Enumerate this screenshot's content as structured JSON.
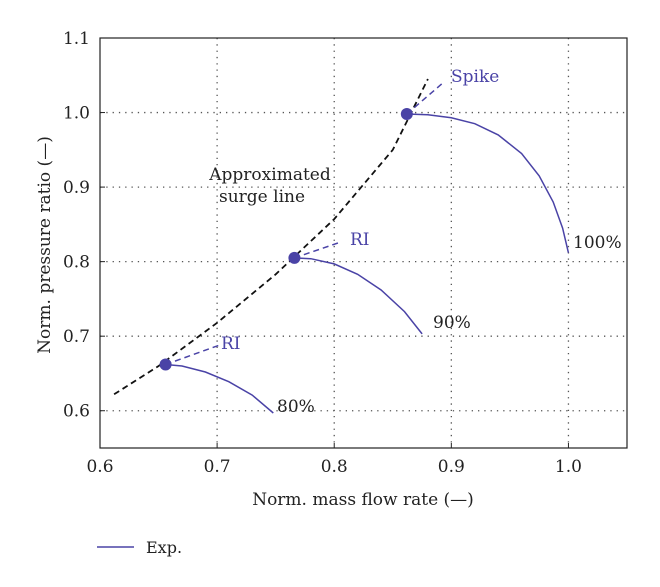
{
  "chart_data": {
    "type": "line",
    "title": "",
    "xlabel": "Norm. mass flow rate (—)",
    "ylabel": "Norm. pressure ratio (—)",
    "xlim": [
      0.6,
      1.05
    ],
    "ylim": [
      0.55,
      1.1
    ],
    "xticks": [
      0.6,
      0.7,
      0.8,
      0.9,
      1.0
    ],
    "xtick_labels": [
      "0.6",
      "0.7",
      "0.8",
      "0.9",
      "1.0"
    ],
    "yticks": [
      0.6,
      0.7,
      0.8,
      0.9,
      1.0,
      1.1
    ],
    "ytick_labels": [
      "0.6",
      "0.7",
      "0.8",
      "0.9",
      "1.0",
      "1.1"
    ],
    "grid": true,
    "colors": {
      "exp": "#4a43a6",
      "surge": "#111111",
      "grid": "#555555"
    },
    "series": [
      {
        "name": "Exp.",
        "speed_label": "100%",
        "x": [
          0.862,
          0.88,
          0.9,
          0.92,
          0.94,
          0.96,
          0.975,
          0.987,
          0.995,
          1.0
        ],
        "y": [
          0.998,
          0.997,
          0.993,
          0.985,
          0.97,
          0.945,
          0.915,
          0.88,
          0.845,
          0.812
        ]
      },
      {
        "name": "Exp.",
        "speed_label": "90%",
        "x": [
          0.766,
          0.78,
          0.8,
          0.82,
          0.84,
          0.86,
          0.875
        ],
        "y": [
          0.805,
          0.804,
          0.797,
          0.783,
          0.762,
          0.733,
          0.703
        ]
      },
      {
        "name": "Exp.",
        "speed_label": "80%",
        "x": [
          0.656,
          0.67,
          0.69,
          0.71,
          0.73,
          0.748
        ],
        "y": [
          0.662,
          0.66,
          0.652,
          0.639,
          0.621,
          0.597
        ]
      }
    ],
    "surge_line": {
      "x": [
        0.612,
        0.65,
        0.7,
        0.75,
        0.8,
        0.85,
        0.88
      ],
      "y": [
        0.622,
        0.66,
        0.718,
        0.783,
        0.857,
        0.95,
        1.045
      ]
    },
    "stall_points": [
      {
        "x": 0.862,
        "y": 0.998
      },
      {
        "x": 0.766,
        "y": 0.805
      },
      {
        "x": 0.656,
        "y": 0.662
      }
    ],
    "onset_lines": [
      {
        "from": [
          0.862,
          0.998
        ],
        "to": [
          0.893,
          1.04
        ]
      },
      {
        "from": [
          0.766,
          0.805
        ],
        "to": [
          0.805,
          0.826
        ]
      },
      {
        "from": [
          0.656,
          0.662
        ],
        "to": [
          0.702,
          0.688
        ]
      }
    ],
    "annotations": {
      "spike": "Spike",
      "ri_90": "RI",
      "ri_80": "RI",
      "surge_line_1": "Approximated",
      "surge_line_2": "surge line",
      "label_100": "100%",
      "label_90": "90%",
      "label_80": "80%"
    },
    "legend": {
      "placement": "bottom-left",
      "label": "Exp."
    }
  }
}
